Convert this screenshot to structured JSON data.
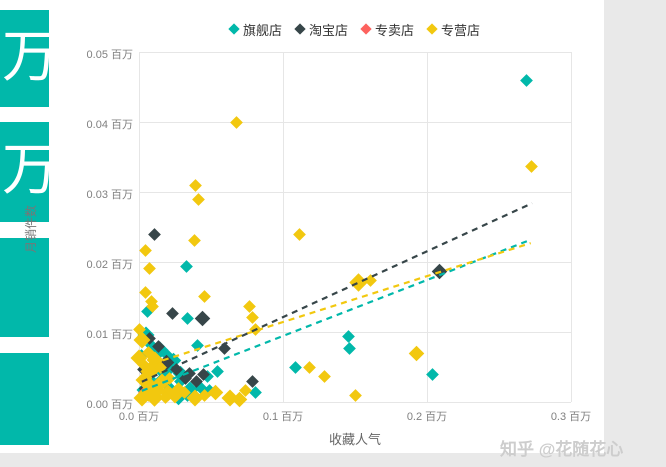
{
  "cards": [
    {
      "value": "万"
    },
    {
      "value": "万"
    },
    {
      "value": ""
    },
    {
      "value": ""
    }
  ],
  "watermark": {
    "text": "知乎 @花随花心"
  },
  "colors": {
    "card_background": "#01B8AA",
    "flagship": "#01B8AA",
    "taobao": "#374649",
    "exclusive": "#FD625E",
    "franchise": "#F2C80F",
    "gridline": "#e6e6e6",
    "axis_text": "#808080"
  },
  "legend": {
    "items": [
      {
        "key": "flagship-store",
        "label": "旗舰店",
        "color": "#01B8AA"
      },
      {
        "key": "taobao-store",
        "label": "淘宝店",
        "color": "#374649"
      },
      {
        "key": "exclusive-store",
        "label": "专卖店",
        "color": "#FD625E"
      },
      {
        "key": "franchise-store",
        "label": "专营店",
        "color": "#F2C80F"
      }
    ]
  },
  "chart_data": {
    "type": "scatter",
    "title": "",
    "xlabel": "收藏人气",
    "ylabel": "月销件数",
    "unit": "百万",
    "xlim": [
      0,
      0.3
    ],
    "ylim": [
      0,
      0.05
    ],
    "x_ticks": [
      {
        "v": 0.0,
        "label": "0.0 百万"
      },
      {
        "v": 0.1,
        "label": "0.1 百万"
      },
      {
        "v": 0.2,
        "label": "0.2 百万"
      },
      {
        "v": 0.3,
        "label": "0.3 百万"
      }
    ],
    "y_ticks": [
      {
        "v": 0.0,
        "label": "0.00 百万"
      },
      {
        "v": 0.01,
        "label": "0.01 百万"
      },
      {
        "v": 0.02,
        "label": "0.02 百万"
      },
      {
        "v": 0.03,
        "label": "0.03 百万"
      },
      {
        "v": 0.04,
        "label": "0.04 百万"
      },
      {
        "v": 0.05,
        "label": "0.05 百万"
      }
    ],
    "series": [
      {
        "name": "旗舰店",
        "key": "flagship-store",
        "color": "#01B8AA",
        "points": [
          [
            0.269,
            0.046
          ],
          [
            0.0333,
            0.0193
          ],
          [
            0.034,
            0.0119
          ],
          [
            0.1458,
            0.0094
          ],
          [
            0.1465,
            0.0077
          ],
          [
            0.109,
            0.005
          ],
          [
            0.2035,
            0.0039
          ],
          [
            0.0403,
            0.0081
          ],
          [
            0.0542,
            0.0043
          ],
          [
            0.0479,
            0.0036
          ],
          [
            0.0806,
            0.0014
          ],
          [
            0.0056,
            0.0129
          ],
          [
            0.0049,
            0.0096,
            12
          ],
          [
            0.009,
            0.0081
          ],
          [
            0.0146,
            0.0074,
            12
          ],
          [
            0.0201,
            0.0067
          ],
          [
            0.0243,
            0.006,
            11
          ],
          [
            0.0118,
            0.0053
          ],
          [
            0.0174,
            0.0043,
            12
          ],
          [
            0.0229,
            0.0049
          ],
          [
            0.0285,
            0.0041,
            11
          ],
          [
            0.0076,
            0.0034
          ],
          [
            0.0146,
            0.0027,
            12
          ],
          [
            0.0215,
            0.0021
          ],
          [
            0.0285,
            0.0029
          ],
          [
            0.0354,
            0.0017,
            12
          ],
          [
            0.0424,
            0.0021
          ],
          [
            0.0271,
            0.0006,
            11
          ],
          [
            0.034,
            0.0009
          ],
          [
            0.0493,
            0.0017
          ],
          [
            0.002,
            0.0067
          ],
          [
            0.0042,
            0.0017,
            12
          ]
        ]
      },
      {
        "name": "淘宝店",
        "key": "taobao-store",
        "color": "#374649",
        "points": [
          [
            0.0111,
            0.0239
          ],
          [
            0.209,
            0.0186,
            11
          ],
          [
            0.0236,
            0.0127
          ],
          [
            0.0444,
            0.012,
            11
          ],
          [
            0.0597,
            0.0076
          ],
          [
            0.0785,
            0.0029
          ],
          [
            0.0354,
            0.0041
          ],
          [
            0.0076,
            0.0091
          ],
          [
            0.0132,
            0.0079
          ],
          [
            0.0188,
            0.0057,
            11
          ],
          [
            0.0257,
            0.0046
          ],
          [
            0.0326,
            0.0034
          ],
          [
            0.0396,
            0.0029
          ],
          [
            0.0049,
            0.002,
            11
          ],
          [
            0.0451,
            0.004
          ],
          [
            0.0028,
            0.0046
          ]
        ]
      },
      {
        "name": "专卖店",
        "key": "exclusive-store",
        "color": "#FD625E",
        "points": [
          [
            0.004,
            0.0013
          ],
          [
            0.0069,
            0.0024
          ]
        ]
      },
      {
        "name": "专营店",
        "key": "franchise-store",
        "color": "#F2C80F",
        "points": [
          [
            0.0674,
            0.0399
          ],
          [
            0.2729,
            0.0336
          ],
          [
            0.0389,
            0.0309
          ],
          [
            0.041,
            0.029
          ],
          [
            0.0042,
            0.0217
          ],
          [
            0.0382,
            0.0231
          ],
          [
            0.1118,
            0.0239
          ],
          [
            0.1521,
            0.0171,
            13
          ],
          [
            0.1611,
            0.0173
          ],
          [
            0.0076,
            0.0191
          ],
          [
            0.0042,
            0.0157
          ],
          [
            0.009,
            0.0143
          ],
          [
            0.0097,
            0.0136
          ],
          [
            0.0458,
            0.0151
          ],
          [
            0.0764,
            0.0136
          ],
          [
            0.0785,
            0.0121
          ],
          [
            0.0806,
            0.0104
          ],
          [
            0.1924,
            0.007,
            11
          ],
          [
            0.1181,
            0.005
          ],
          [
            0.1285,
            0.0037
          ],
          [
            0.15,
            0.001
          ],
          [
            0.0021,
            0.0089,
            12
          ],
          [
            0.0063,
            0.0071
          ],
          [
            0.0111,
            0.006,
            12
          ],
          [
            0.0028,
            0.0053
          ],
          [
            0.0076,
            0.0043,
            13
          ],
          [
            0.0146,
            0.0049
          ],
          [
            0.0035,
            0.0031,
            12
          ],
          [
            0.009,
            0.0024
          ],
          [
            0.016,
            0.0029,
            12
          ],
          [
            0.0215,
            0.0034
          ],
          [
            0.0063,
            0.0014,
            13
          ],
          [
            0.0132,
            0.0017
          ],
          [
            0.0201,
            0.0013,
            12
          ],
          [
            0.0271,
            0.002
          ],
          [
            0.0021,
            0.0006,
            12
          ],
          [
            0.0111,
            0.0006,
            13
          ],
          [
            0.0181,
            0.0007
          ],
          [
            0.025,
            0.001,
            12
          ],
          [
            0.0319,
            0.0014
          ],
          [
            0.0389,
            0.0006,
            12
          ],
          [
            0.0458,
            0.0009
          ],
          [
            0.0528,
            0.0013,
            11
          ],
          [
            0.0632,
            0.0006,
            12
          ],
          [
            0.0743,
            0.0017
          ],
          [
            0.0701,
            0.0004,
            11
          ],
          [
            0.0,
            0.0103
          ],
          [
            0.0,
            0.0063,
            12
          ]
        ]
      }
    ],
    "trendlines": [
      {
        "series": "旗舰店",
        "color": "#01B8AA",
        "x1": 0.002,
        "y1": 0.0016,
        "x2": 0.271,
        "y2": 0.0231
      },
      {
        "series": "专营店",
        "color": "#F2C80F",
        "x1": 0.002,
        "y1": 0.005,
        "x2": 0.272,
        "y2": 0.0227
      },
      {
        "series": "淘宝店",
        "color": "#374649",
        "x1": 0.002,
        "y1": 0.0029,
        "x2": 0.273,
        "y2": 0.0284
      }
    ]
  }
}
